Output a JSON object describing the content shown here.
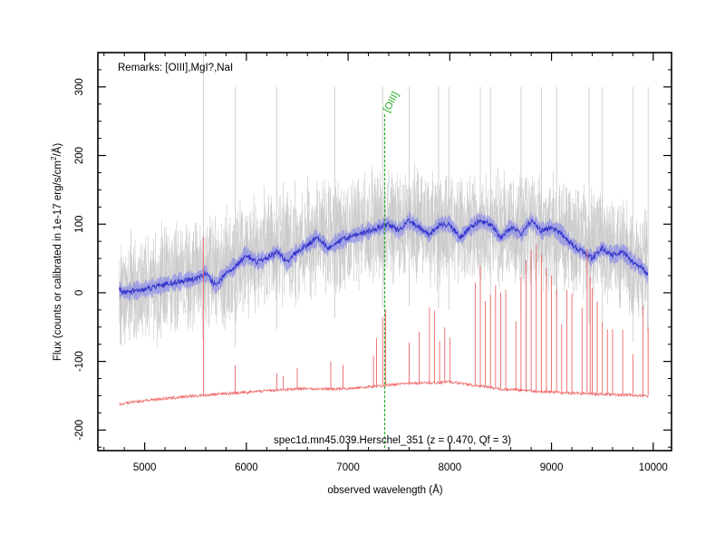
{
  "chart_data": {
    "type": "line",
    "xlabel": "observed wavelength (Å)",
    "ylabel_main": "Flux (counts or calibrated in 1e-17 erg/s/cm",
    "ylabel_sup": "2",
    "ylabel_tail": "/Å)",
    "remarks": "Remarks: [OIII],MgI?,NaI",
    "footer": "spec1d.mn45.039.Herschel_351 (z = 0.470, Qf = 3)",
    "xlim": [
      4540,
      10180
    ],
    "ylim": [
      -230,
      350
    ],
    "x_ticks": [
      5000,
      6000,
      7000,
      8000,
      9000,
      10000
    ],
    "x_tick_labels": [
      "5000",
      "6000",
      "7000",
      "8000",
      "9000",
      "10000"
    ],
    "y_ticks": [
      -200,
      -100,
      0,
      100,
      200,
      300
    ],
    "y_tick_labels": [
      "-200",
      "-100",
      "0",
      "100",
      "200",
      "300"
    ],
    "x_minor_step": 200,
    "y_minor_step": 25,
    "line_marker": {
      "label": "[OIII]",
      "wavelength": 7360,
      "y_top": 260,
      "color": "#22aa22"
    },
    "colors": {
      "raw": "#c8c8c8",
      "smoothed": "#3333cc",
      "band": "#7777ee",
      "sky": "#ee6666"
    },
    "series": [
      {
        "name": "",
        "role": "raw",
        "x": [
          4750,
          5000,
          5250,
          5500,
          5750,
          6000,
          6250,
          6500,
          6750,
          7000,
          7250,
          7500,
          7750,
          8000,
          8250,
          8500,
          8750,
          9000,
          9250,
          9500,
          9750,
          9950
        ],
        "values": [
          5,
          8,
          15,
          25,
          30,
          50,
          65,
          75,
          80,
          85,
          95,
          100,
          100,
          95,
          95,
          90,
          90,
          85,
          80,
          70,
          55,
          30
        ],
        "spread": 60
      },
      {
        "name": "",
        "role": "smoothed",
        "x": [
          4750,
          4800,
          4900,
          5000,
          5100,
          5200,
          5300,
          5400,
          5500,
          5600,
          5700,
          5800,
          5900,
          6000,
          6100,
          6200,
          6300,
          6400,
          6500,
          6600,
          6700,
          6800,
          6900,
          7000,
          7100,
          7200,
          7300,
          7400,
          7500,
          7600,
          7700,
          7800,
          7900,
          8000,
          8100,
          8200,
          8300,
          8400,
          8500,
          8600,
          8700,
          8800,
          8900,
          9000,
          9100,
          9200,
          9300,
          9400,
          9500,
          9600,
          9700,
          9800,
          9900,
          9950
        ],
        "values": [
          5,
          0,
          3,
          5,
          8,
          12,
          15,
          18,
          20,
          28,
          10,
          30,
          40,
          55,
          45,
          50,
          60,
          45,
          60,
          70,
          80,
          65,
          75,
          80,
          85,
          90,
          95,
          100,
          90,
          105,
          95,
          85,
          100,
          100,
          80,
          95,
          105,
          100,
          80,
          95,
          85,
          105,
          90,
          95,
          85,
          70,
          60,
          50,
          65,
          55,
          60,
          45,
          35,
          25
        ],
        "spread": 10
      },
      {
        "name": "",
        "role": "sky",
        "x": [
          4750,
          5000,
          5500,
          6000,
          6500,
          7000,
          7500,
          8000,
          8500,
          9000,
          9500,
          9950
        ],
        "values": [
          -162,
          -157,
          -150,
          -145,
          -140,
          -140,
          -133,
          -130,
          -140,
          -145,
          -148,
          -150
        ]
      }
    ],
    "spikes": {
      "sky_lines": [
        5577,
        5890,
        6300,
        6363,
        6500,
        6830,
        6950,
        7250,
        7280,
        7340,
        7370,
        7600,
        7700,
        7800,
        7850,
        7900,
        7950,
        8000,
        8250,
        8300,
        8350,
        8400,
        8450,
        8500,
        8550,
        8650,
        8700,
        8750,
        8800,
        8850,
        8900,
        8950,
        9000,
        9050,
        9100,
        9150,
        9200,
        9300,
        9350,
        9380,
        9400,
        9450,
        9500,
        9550,
        9600,
        9700,
        9800,
        9900,
        9950
      ],
      "sky_heights": [
        230,
        40,
        25,
        20,
        30,
        40,
        35,
        45,
        70,
        100,
        110,
        60,
        75,
        110,
        105,
        60,
        80,
        65,
        150,
        175,
        125,
        135,
        150,
        140,
        145,
        100,
        165,
        190,
        205,
        215,
        200,
        180,
        170,
        150,
        100,
        150,
        145,
        125,
        210,
        170,
        155,
        135,
        105,
        95,
        95,
        95,
        60,
        130,
        100
      ],
      "raw_spikes": [
        5577,
        5890,
        6300,
        6870,
        7340,
        7600,
        7890,
        7990,
        8300,
        8400,
        8700,
        8900,
        9050,
        9370,
        9500,
        9800,
        9950
      ],
      "raw_heights": [
        350,
        300,
        300,
        300,
        300,
        300,
        300,
        300,
        300,
        300,
        300,
        300,
        300,
        300,
        300,
        300,
        300
      ]
    }
  }
}
